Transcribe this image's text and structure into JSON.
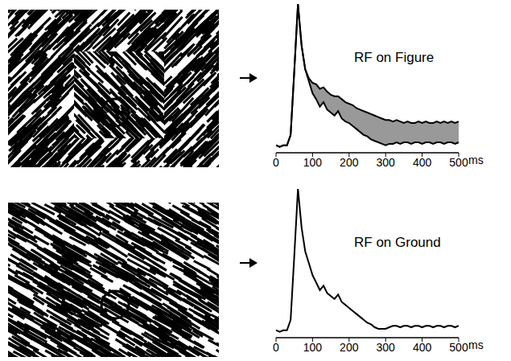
{
  "chart_data": [
    {
      "type": "line",
      "title": "RF on Figure",
      "x_label": "ms",
      "tick_labels": "x",
      "x": [
        0,
        10,
        20,
        30,
        40,
        50,
        60,
        70,
        80,
        90,
        100,
        110,
        120,
        130,
        140,
        150,
        160,
        170,
        180,
        190,
        200,
        210,
        220,
        230,
        240,
        250,
        260,
        270,
        280,
        290,
        300,
        310,
        320,
        330,
        340,
        350,
        360,
        370,
        380,
        390,
        400,
        410,
        420,
        430,
        440,
        450,
        460,
        470,
        480,
        490,
        500
      ],
      "xlim": [
        0,
        500
      ],
      "xticks": [
        0,
        100,
        200,
        300,
        400,
        500
      ],
      "ylim": [
        0,
        1
      ],
      "series": [
        {
          "color": "#000000",
          "values": [
            0.05,
            0.04,
            0.05,
            0.05,
            0.12,
            0.55,
            1.0,
            0.72,
            0.56,
            0.5,
            0.47,
            0.46,
            0.43,
            0.44,
            0.41,
            0.39,
            0.38,
            0.38,
            0.36,
            0.34,
            0.33,
            0.32,
            0.3,
            0.29,
            0.28,
            0.27,
            0.26,
            0.25,
            0.24,
            0.23,
            0.22,
            0.22,
            0.21,
            0.22,
            0.21,
            0.2,
            0.21,
            0.2,
            0.2,
            0.21,
            0.2,
            0.21,
            0.2,
            0.2,
            0.21,
            0.2,
            0.21,
            0.2,
            0.21,
            0.2,
            0.21
          ]
        },
        {
          "color": "#000000",
          "values": [
            0.05,
            0.04,
            0.05,
            0.05,
            0.12,
            0.55,
            1.0,
            0.72,
            0.56,
            0.48,
            0.4,
            0.36,
            0.31,
            0.34,
            0.29,
            0.27,
            0.25,
            0.28,
            0.23,
            0.21,
            0.2,
            0.18,
            0.16,
            0.14,
            0.12,
            0.11,
            0.09,
            0.08,
            0.07,
            0.06,
            0.05,
            0.06,
            0.06,
            0.07,
            0.06,
            0.07,
            0.07,
            0.06,
            0.07,
            0.07,
            0.06,
            0.07,
            0.07,
            0.06,
            0.07,
            0.07,
            0.06,
            0.07,
            0.07,
            0.06,
            0.07
          ]
        }
      ]
    },
    {
      "type": "line",
      "title": "RF on Ground",
      "x_label": "ms",
      "tick_labels": "x",
      "x": [
        0,
        10,
        20,
        30,
        40,
        50,
        60,
        70,
        80,
        90,
        100,
        110,
        120,
        130,
        140,
        150,
        160,
        170,
        180,
        190,
        200,
        210,
        220,
        230,
        240,
        250,
        260,
        270,
        280,
        290,
        300,
        310,
        320,
        330,
        340,
        350,
        360,
        370,
        380,
        390,
        400,
        410,
        420,
        430,
        440,
        450,
        460,
        470,
        480,
        490,
        500
      ],
      "xlim": [
        0,
        500
      ],
      "xticks": [
        0,
        100,
        200,
        300,
        400,
        500
      ],
      "ylim": [
        0,
        1
      ],
      "series": [
        {
          "color": "#000000",
          "values": [
            0.05,
            0.04,
            0.05,
            0.05,
            0.12,
            0.55,
            1.0,
            0.74,
            0.58,
            0.5,
            0.42,
            0.37,
            0.32,
            0.35,
            0.3,
            0.28,
            0.26,
            0.29,
            0.24,
            0.22,
            0.2,
            0.18,
            0.16,
            0.14,
            0.12,
            0.1,
            0.09,
            0.07,
            0.06,
            0.06,
            0.06,
            0.07,
            0.08,
            0.08,
            0.07,
            0.08,
            0.08,
            0.07,
            0.08,
            0.08,
            0.07,
            0.08,
            0.08,
            0.07,
            0.08,
            0.08,
            0.07,
            0.08,
            0.08,
            0.07,
            0.08
          ]
        }
      ]
    }
  ]
}
